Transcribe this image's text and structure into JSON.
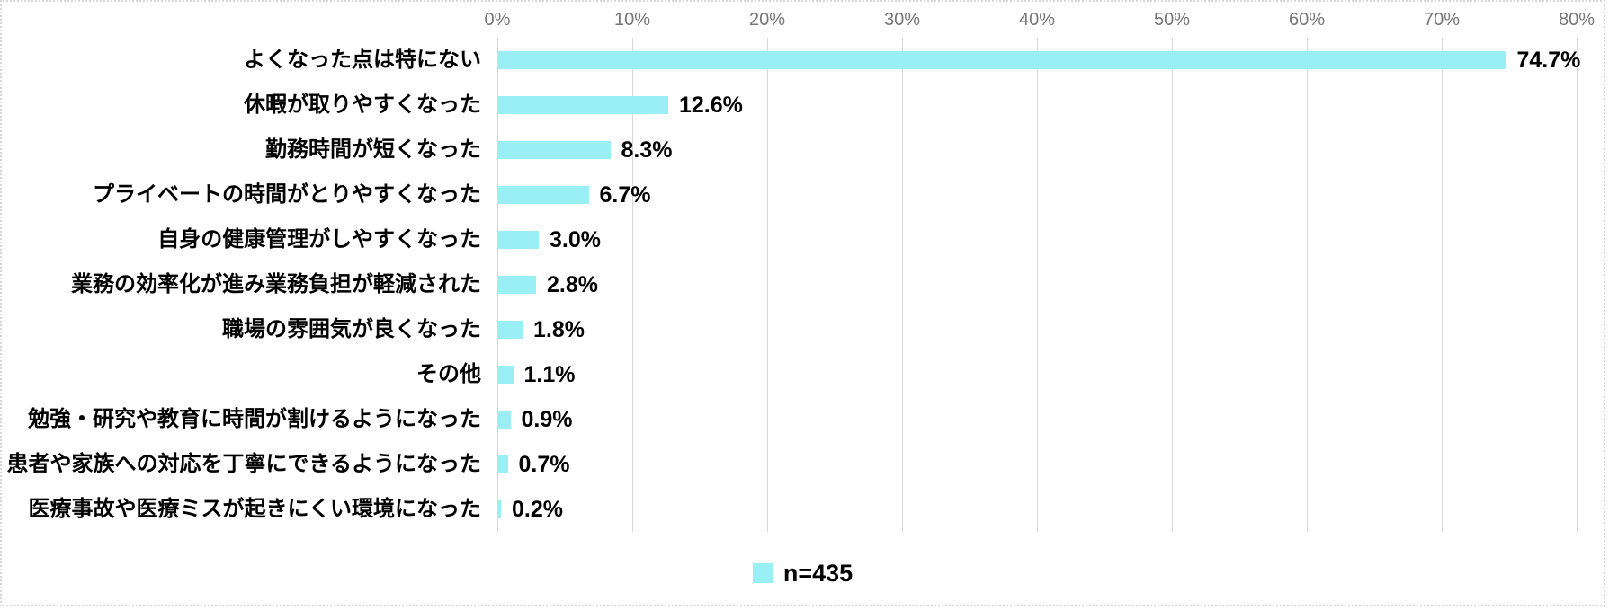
{
  "chart_data": {
    "type": "bar",
    "orientation": "horizontal",
    "categories": [
      "よくなった点は特にない",
      "休暇が取りやすくなった",
      "勤務時間が短くなった",
      "プライベートの時間がとりやすくなった",
      "自身の健康管理がしやすくなった",
      "業務の効率化が進み業務負担が軽減された",
      "職場の雰囲気が良くなった",
      "その他",
      "勉強・研究や教育に時間が割けるようになった",
      "患者や家族への対応を丁寧にできるようになった",
      "医療事故や医療ミスが起きにくい環境になった"
    ],
    "values": [
      74.7,
      12.6,
      8.3,
      6.7,
      3.0,
      2.8,
      1.8,
      1.1,
      0.9,
      0.7,
      0.2
    ],
    "value_labels": [
      "74.7%",
      "12.6%",
      "8.3%",
      "6.7%",
      "3.0%",
      "2.8%",
      "1.8%",
      "1.1%",
      "0.9%",
      "0.7%",
      "0.2%"
    ],
    "x_ticks": [
      "0%",
      "10%",
      "20%",
      "30%",
      "40%",
      "50%",
      "60%",
      "70%",
      "80%"
    ],
    "xlim": [
      0,
      80
    ],
    "grid": true,
    "legend": {
      "label": "n=435",
      "position": "bottom"
    },
    "colors": {
      "bar": "#99EFF4",
      "gridline": "#d9d9d9",
      "axis_text": "#767676",
      "label_text": "#000000"
    }
  }
}
